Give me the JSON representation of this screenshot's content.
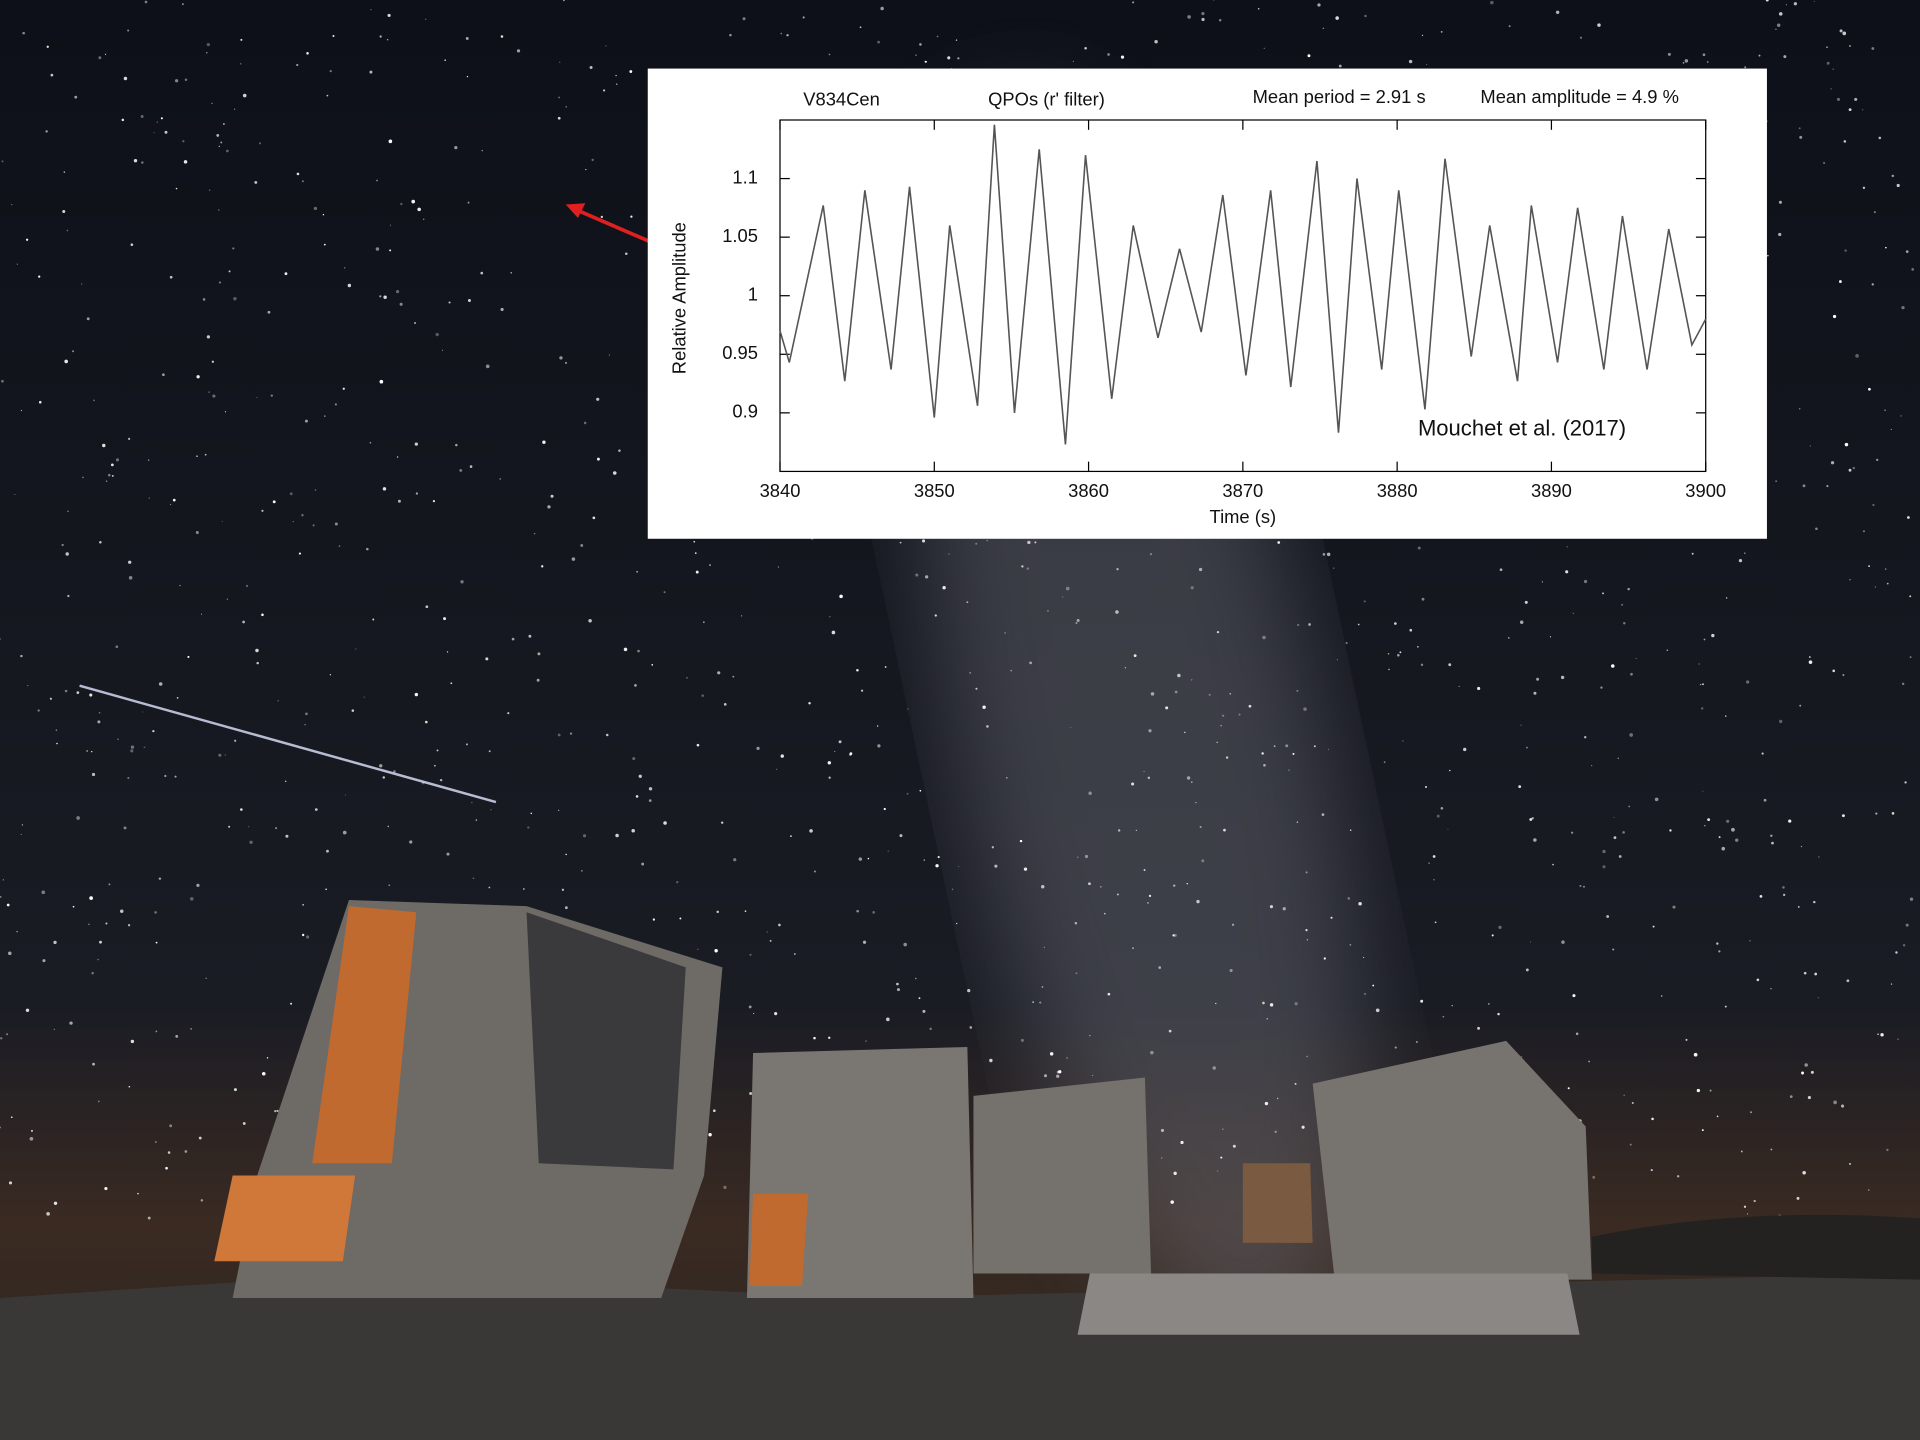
{
  "chart_data": {
    "type": "line",
    "annotations": [
      "V834Cen",
      "QPOs (r' filter)",
      "Mean period = 2.91 s",
      "Mean amplitude = 4.9 %",
      "Mouchet et al. (2017)"
    ],
    "xlabel": "Time (s)",
    "ylabel": "Relative Amplitude",
    "x": [
      3840,
      3840.6,
      3842.8,
      3844.2,
      3845.5,
      3847.2,
      3848.4,
      3850,
      3851,
      3852.8,
      3853.9,
      3855.2,
      3856.8,
      3858.5,
      3859.8,
      3861.5,
      3862.9,
      3864.5,
      3865.9,
      3867.3,
      3868.7,
      3870.2,
      3871.8,
      3873.1,
      3874.8,
      3876.2,
      3877.4,
      3879,
      3880.1,
      3881.8,
      3883.1,
      3884.8,
      3886,
      3887.8,
      3888.7,
      3890.4,
      3891.7,
      3893.4,
      3894.6,
      3896.2,
      3897.6,
      3899.1,
      3900
    ],
    "values": [
      0.97,
      0.943,
      1.077,
      0.927,
      1.09,
      0.937,
      1.093,
      0.896,
      1.06,
      0.906,
      1.146,
      0.9,
      1.125,
      0.873,
      1.12,
      0.912,
      1.06,
      0.964,
      1.04,
      0.969,
      1.086,
      0.932,
      1.09,
      0.922,
      1.115,
      0.883,
      1.1,
      0.937,
      1.09,
      0.903,
      1.117,
      0.948,
      1.06,
      0.927,
      1.077,
      0.943,
      1.075,
      0.937,
      1.068,
      0.937,
      1.057,
      0.958,
      0.98
    ],
    "color": "#555555",
    "xlim": [
      3840,
      3900
    ],
    "xticks": [
      3840,
      3850,
      3860,
      3870,
      3880,
      3890,
      3900
    ],
    "ylim": [
      0.85,
      1.15
    ],
    "yticks": [
      0.9,
      0.95,
      1,
      1.05,
      1.1
    ]
  }
}
